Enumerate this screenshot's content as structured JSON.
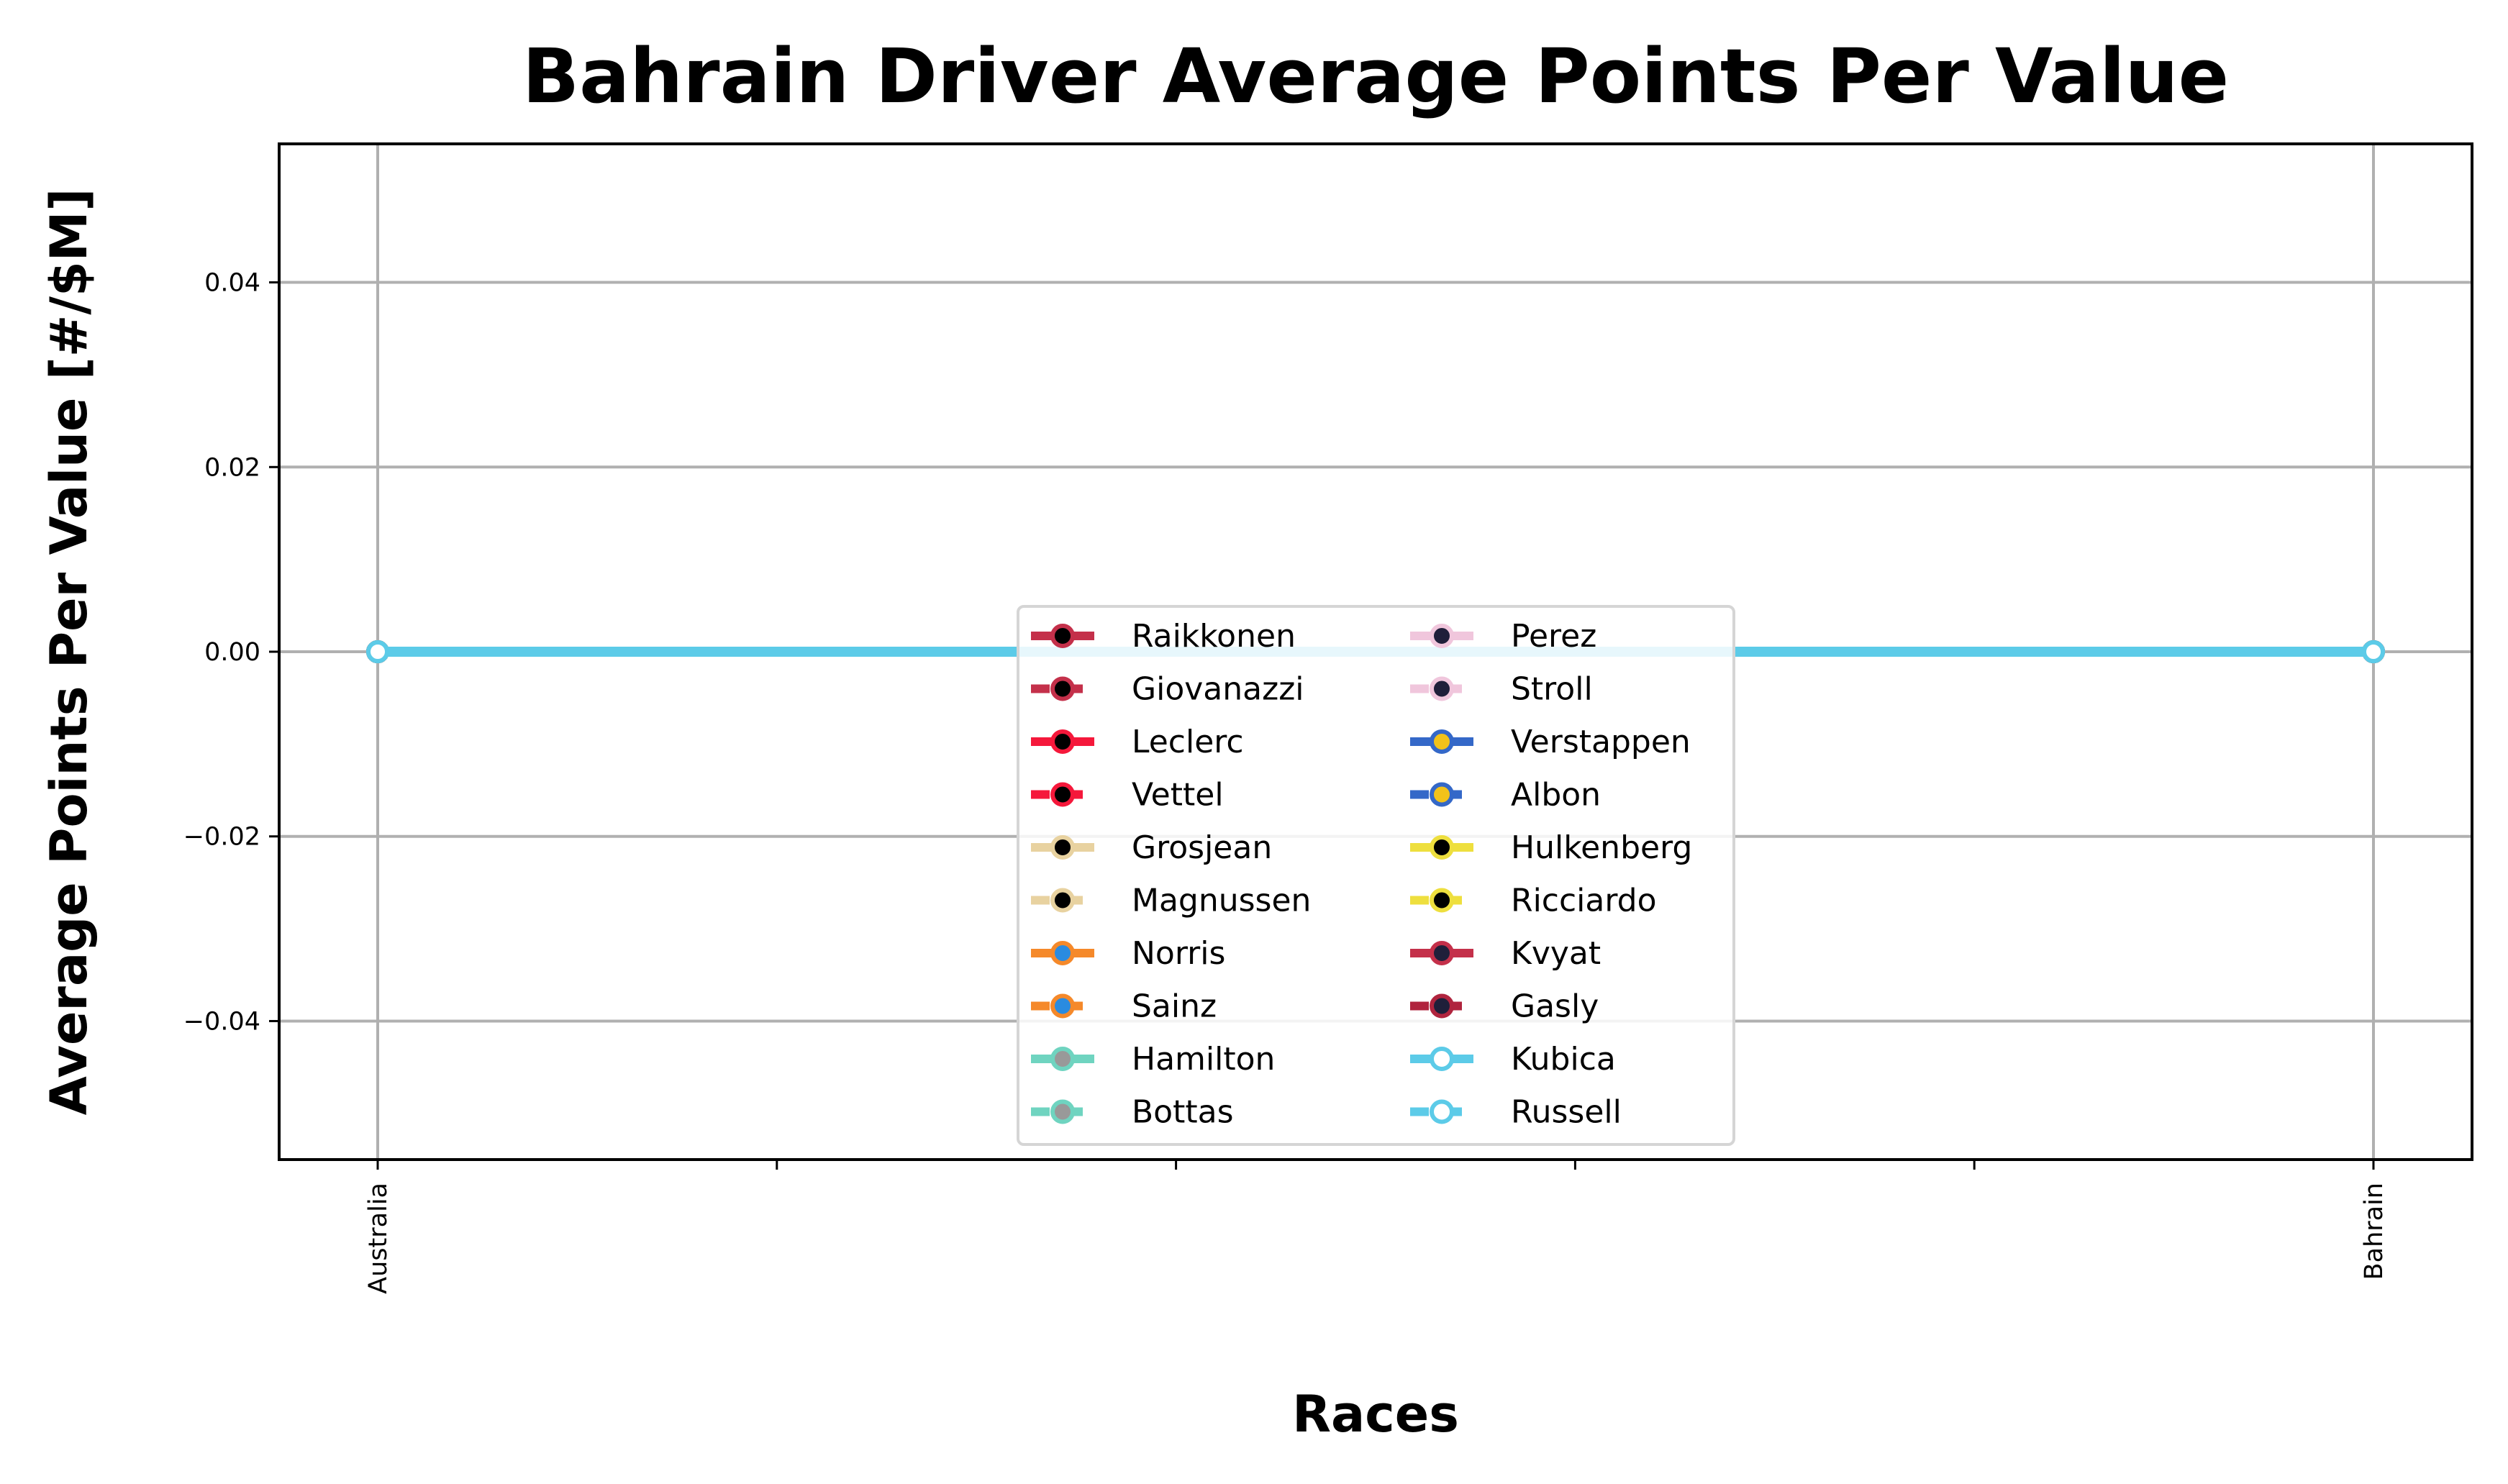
{
  "chart_data": {
    "type": "line",
    "title": "Bahrain Driver Average Points Per Value",
    "xlabel": "Races",
    "ylabel": "Average Points Per Value [#/$M]",
    "categories": [
      "Australia",
      "Bahrain"
    ],
    "ylim": [
      -0.055,
      0.055
    ],
    "yticks": [
      0.04,
      0.02,
      0.0,
      -0.02,
      -0.04
    ],
    "ytick_labels": [
      "0.04",
      "0.02",
      "0.00",
      "−0.02",
      "−0.04"
    ],
    "grid": true,
    "legend_position": "lower-center",
    "series": [
      {
        "name": "Raikkonen",
        "values": [
          0,
          0
        ],
        "color": "#c4304a",
        "marker_face": "#000000",
        "dashed": false
      },
      {
        "name": "Giovanazzi",
        "values": [
          0,
          0
        ],
        "color": "#c4304a",
        "marker_face": "#000000",
        "dashed": true
      },
      {
        "name": "Leclerc",
        "values": [
          0,
          0
        ],
        "color": "#f5183b",
        "marker_face": "#000000",
        "dashed": false
      },
      {
        "name": "Vettel",
        "values": [
          0,
          0
        ],
        "color": "#f5183b",
        "marker_face": "#000000",
        "dashed": true
      },
      {
        "name": "Grosjean",
        "values": [
          0,
          0
        ],
        "color": "#e8d2a0",
        "marker_face": "#000000",
        "dashed": false
      },
      {
        "name": "Magnussen",
        "values": [
          0,
          0
        ],
        "color": "#e8d2a0",
        "marker_face": "#000000",
        "dashed": true
      },
      {
        "name": "Norris",
        "values": [
          0,
          0
        ],
        "color": "#f5892a",
        "marker_face": "#2a8be0",
        "dashed": false
      },
      {
        "name": "Sainz",
        "values": [
          0,
          0
        ],
        "color": "#f5892a",
        "marker_face": "#2a8be0",
        "dashed": true
      },
      {
        "name": "Hamilton",
        "values": [
          0,
          0
        ],
        "color": "#6fd4c0",
        "marker_face": "#999999",
        "dashed": false
      },
      {
        "name": "Bottas",
        "values": [
          0,
          0
        ],
        "color": "#6fd4c0",
        "marker_face": "#999999",
        "dashed": true
      },
      {
        "name": "Perez",
        "values": [
          0,
          0
        ],
        "color": "#f0c6dc",
        "marker_face": "#1f1f3a",
        "dashed": false
      },
      {
        "name": "Stroll",
        "values": [
          0,
          0
        ],
        "color": "#f0c6dc",
        "marker_face": "#1f1f3a",
        "dashed": true
      },
      {
        "name": "Verstappen",
        "values": [
          0,
          0
        ],
        "color": "#3468c8",
        "marker_face": "#f2c21a",
        "dashed": false
      },
      {
        "name": "Albon",
        "values": [
          0,
          0
        ],
        "color": "#3468c8",
        "marker_face": "#f2c21a",
        "dashed": true
      },
      {
        "name": "Hulkenberg",
        "values": [
          0,
          0
        ],
        "color": "#eedf3e",
        "marker_face": "#000000",
        "dashed": false
      },
      {
        "name": "Ricciardo",
        "values": [
          0,
          0
        ],
        "color": "#eedf3e",
        "marker_face": "#000000",
        "dashed": true
      },
      {
        "name": "Kvyat",
        "values": [
          0,
          0
        ],
        "color": "#c4304a",
        "marker_face": "#1f1f3a",
        "dashed": false
      },
      {
        "name": "Gasly",
        "values": [
          0,
          0
        ],
        "color": "#b0243e",
        "marker_face": "#1f1f3a",
        "dashed": true
      },
      {
        "name": "Kubica",
        "values": [
          0,
          0
        ],
        "color": "#5ccbe8",
        "marker_face": "#ffffff",
        "dashed": false
      },
      {
        "name": "Russell",
        "values": [
          0,
          0
        ],
        "color": "#5ccbe8",
        "marker_face": "#ffffff",
        "dashed": true
      }
    ]
  }
}
